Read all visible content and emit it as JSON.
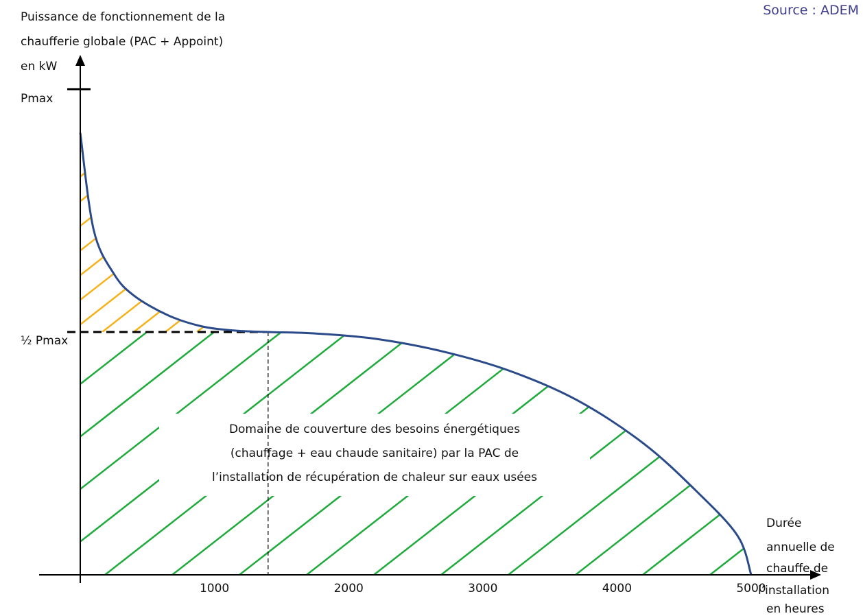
{
  "source": "Source : ADEM",
  "chart_data": {
    "type": "area",
    "title": "",
    "ylabel_lines": [
      "Puissance de fonctionnement de la",
      "chaufferie globale (PAC + Appoint)",
      "en kW"
    ],
    "xlabel_lines": [
      "Durée",
      "annuelle de",
      "chauffe de",
      "l’installation",
      "en heures"
    ],
    "y_ticks": [
      "Pmax",
      "½ Pmax"
    ],
    "x_ticks": [
      1000,
      2000,
      3000,
      4000,
      5000
    ],
    "xlim": [
      0,
      5000
    ],
    "ylim_fraction_of_pmax": [
      0,
      1
    ],
    "curve": {
      "x": [
        0,
        100,
        250,
        400,
        650,
        900,
        1150,
        1400,
        1750,
        2200,
        2700,
        3200,
        3700,
        4200,
        4600,
        4900,
        5000
      ],
      "y": [
        0.91,
        0.71,
        0.62,
        0.575,
        0.535,
        0.512,
        0.503,
        0.5,
        0.497,
        0.486,
        0.46,
        0.42,
        0.36,
        0.27,
        0.17,
        0.08,
        0.0
      ]
    },
    "half_pmax_intersection_x": 1400,
    "regions": [
      {
        "name": "appoint",
        "color": "#f5b21a",
        "range": "above ½ Pmax"
      },
      {
        "name": "pac",
        "color": "#1faa3c",
        "range": "below ½ Pmax"
      }
    ],
    "curve_color": "#2b4a8a",
    "annotation_lines": [
      "Domaine de couverture des besoins énergétiques",
      "(chauffage + eau chaude sanitaire) par la PAC de",
      "l’installation de récupération de chaleur sur eaux usées"
    ]
  }
}
